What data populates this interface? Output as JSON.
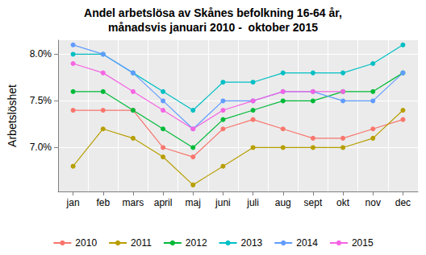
{
  "chart_data": {
    "type": "line",
    "title": "Andel arbetslösa av Skånes befolkning 16-64 år,\nmånadsvis januari 2010 -  oktober 2015",
    "y_label": "Arbetslöshet",
    "categories": [
      "jan",
      "feb",
      "mars",
      "april",
      "maj",
      "juni",
      "juli",
      "aug",
      "sept",
      "okt",
      "nov",
      "dec"
    ],
    "series": [
      {
        "name": "2010",
        "color": "#F8766D",
        "values": [
          7.4,
          7.4,
          7.4,
          7.0,
          6.9,
          7.2,
          7.3,
          7.2,
          7.1,
          7.1,
          7.2,
          7.3
        ]
      },
      {
        "name": "2011",
        "color": "#B79F00",
        "values": [
          6.8,
          7.2,
          7.1,
          6.9,
          6.6,
          6.8,
          7.0,
          7.0,
          7.0,
          7.0,
          7.1,
          7.4
        ]
      },
      {
        "name": "2012",
        "color": "#00BA38",
        "values": [
          7.6,
          7.6,
          7.4,
          7.2,
          7.0,
          7.3,
          7.4,
          7.5,
          7.5,
          7.6,
          7.6,
          7.8
        ]
      },
      {
        "name": "2013",
        "color": "#00BFC4",
        "values": [
          8.0,
          8.0,
          7.8,
          7.6,
          7.4,
          7.7,
          7.7,
          7.8,
          7.8,
          7.8,
          7.9,
          8.1
        ]
      },
      {
        "name": "2014",
        "color": "#619CFF",
        "values": [
          8.1,
          8.0,
          7.8,
          7.5,
          7.2,
          7.5,
          7.5,
          7.6,
          7.6,
          7.5,
          7.5,
          7.8
        ]
      },
      {
        "name": "2015",
        "color": "#F564E3",
        "values": [
          7.9,
          7.8,
          7.6,
          7.4,
          7.2,
          7.4,
          7.5,
          7.6,
          7.6,
          7.6,
          null,
          null
        ]
      }
    ],
    "ylim": [
      6.53,
      8.15
    ],
    "yticks": [
      {
        "value": 7.0,
        "label": "7.0%"
      },
      {
        "value": 7.5,
        "label": "7.5%"
      },
      {
        "value": 8.0,
        "label": "8.0%"
      }
    ],
    "grid": true,
    "legend": "bottom",
    "marker": "circle"
  }
}
